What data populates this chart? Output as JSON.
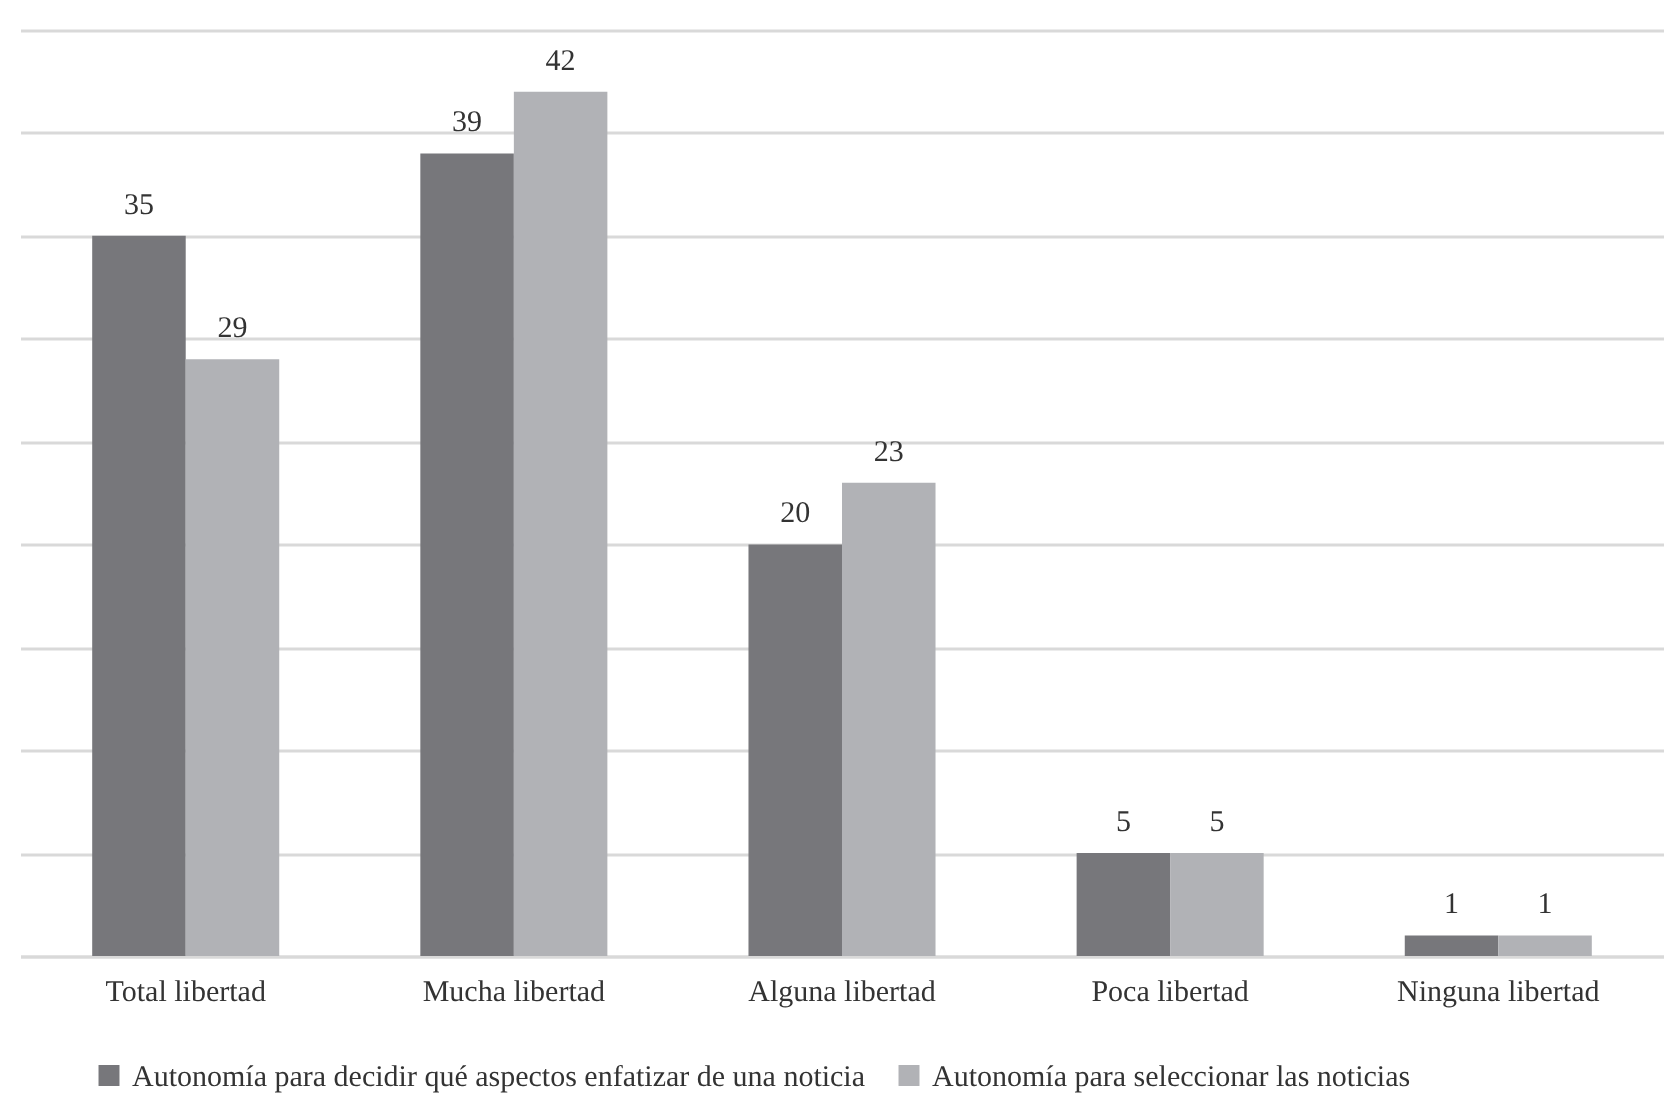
{
  "chart_data": {
    "type": "bar",
    "categories": [
      "Total libertad",
      "Mucha libertad",
      "Alguna libertad",
      "Poca libertad",
      "Ninguna libertad"
    ],
    "series": [
      {
        "name": "Autonomía para decidir qué aspectos enfatizar de una noticia",
        "color": "#77777b",
        "values": [
          35,
          39,
          20,
          5,
          1
        ]
      },
      {
        "name": "Autonomía para seleccionar las noticias",
        "color": "#b1b2b6",
        "values": [
          29,
          42,
          23,
          5,
          1
        ]
      }
    ],
    "ylim": [
      0,
      45
    ],
    "yticks": [
      {
        "value": 0,
        "label": null
      },
      {
        "value": 5,
        "label": null
      },
      {
        "value": 10,
        "label": null
      },
      {
        "value": 15,
        "label": null
      },
      {
        "value": 20,
        "label": null
      },
      {
        "value": 25,
        "label": null
      },
      {
        "value": 30,
        "label": null
      },
      {
        "value": 35,
        "label": null
      },
      {
        "value": 40,
        "label": null
      },
      {
        "value": 45,
        "label": null
      }
    ],
    "grid": "y",
    "tick_labels": "x",
    "data_labels": true,
    "legend": "bottom"
  }
}
